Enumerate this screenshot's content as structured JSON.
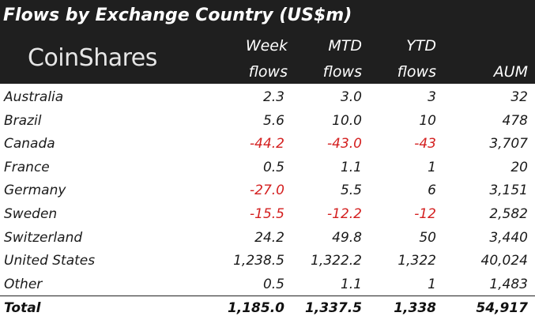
{
  "title": "Flows by Exchange Country (US$m)",
  "logo": "CoinShares",
  "colors": {
    "header_bg": "#1f1f1f",
    "negative": "#d42020",
    "text": "#1a1a1a"
  },
  "columns": [
    {
      "line1": "Week",
      "line2": "flows"
    },
    {
      "line1": "MTD",
      "line2": "flows"
    },
    {
      "line1": "YTD",
      "line2": "flows"
    },
    {
      "line1": "",
      "line2": "AUM"
    }
  ],
  "chart_data": {
    "type": "table",
    "title": "Flows by Exchange Country (US$m)",
    "rows": [
      {
        "country": "Australia",
        "values": [
          "2.3",
          "3.0",
          "3",
          "32"
        ]
      },
      {
        "country": "Brazil",
        "values": [
          "5.6",
          "10.0",
          "10",
          "478"
        ]
      },
      {
        "country": "Canada",
        "values": [
          "-44.2",
          "-43.0",
          "-43",
          "3,707"
        ]
      },
      {
        "country": "France",
        "values": [
          "0.5",
          "1.1",
          "1",
          "20"
        ]
      },
      {
        "country": "Germany",
        "values": [
          "-27.0",
          "5.5",
          "6",
          "3,151"
        ]
      },
      {
        "country": "Sweden",
        "values": [
          "-15.5",
          "-12.2",
          "-12",
          "2,582"
        ]
      },
      {
        "country": "Switzerland",
        "values": [
          "24.2",
          "49.8",
          "50",
          "3,440"
        ]
      },
      {
        "country": "United States",
        "values": [
          "1,238.5",
          "1,322.2",
          "1,322",
          "40,024"
        ]
      },
      {
        "country": "Other",
        "values": [
          "0.5",
          "1.1",
          "1",
          "1,483"
        ]
      }
    ],
    "total": {
      "country": "Total",
      "values": [
        "1,185.0",
        "1,337.5",
        "1,338",
        "54,917"
      ]
    }
  }
}
